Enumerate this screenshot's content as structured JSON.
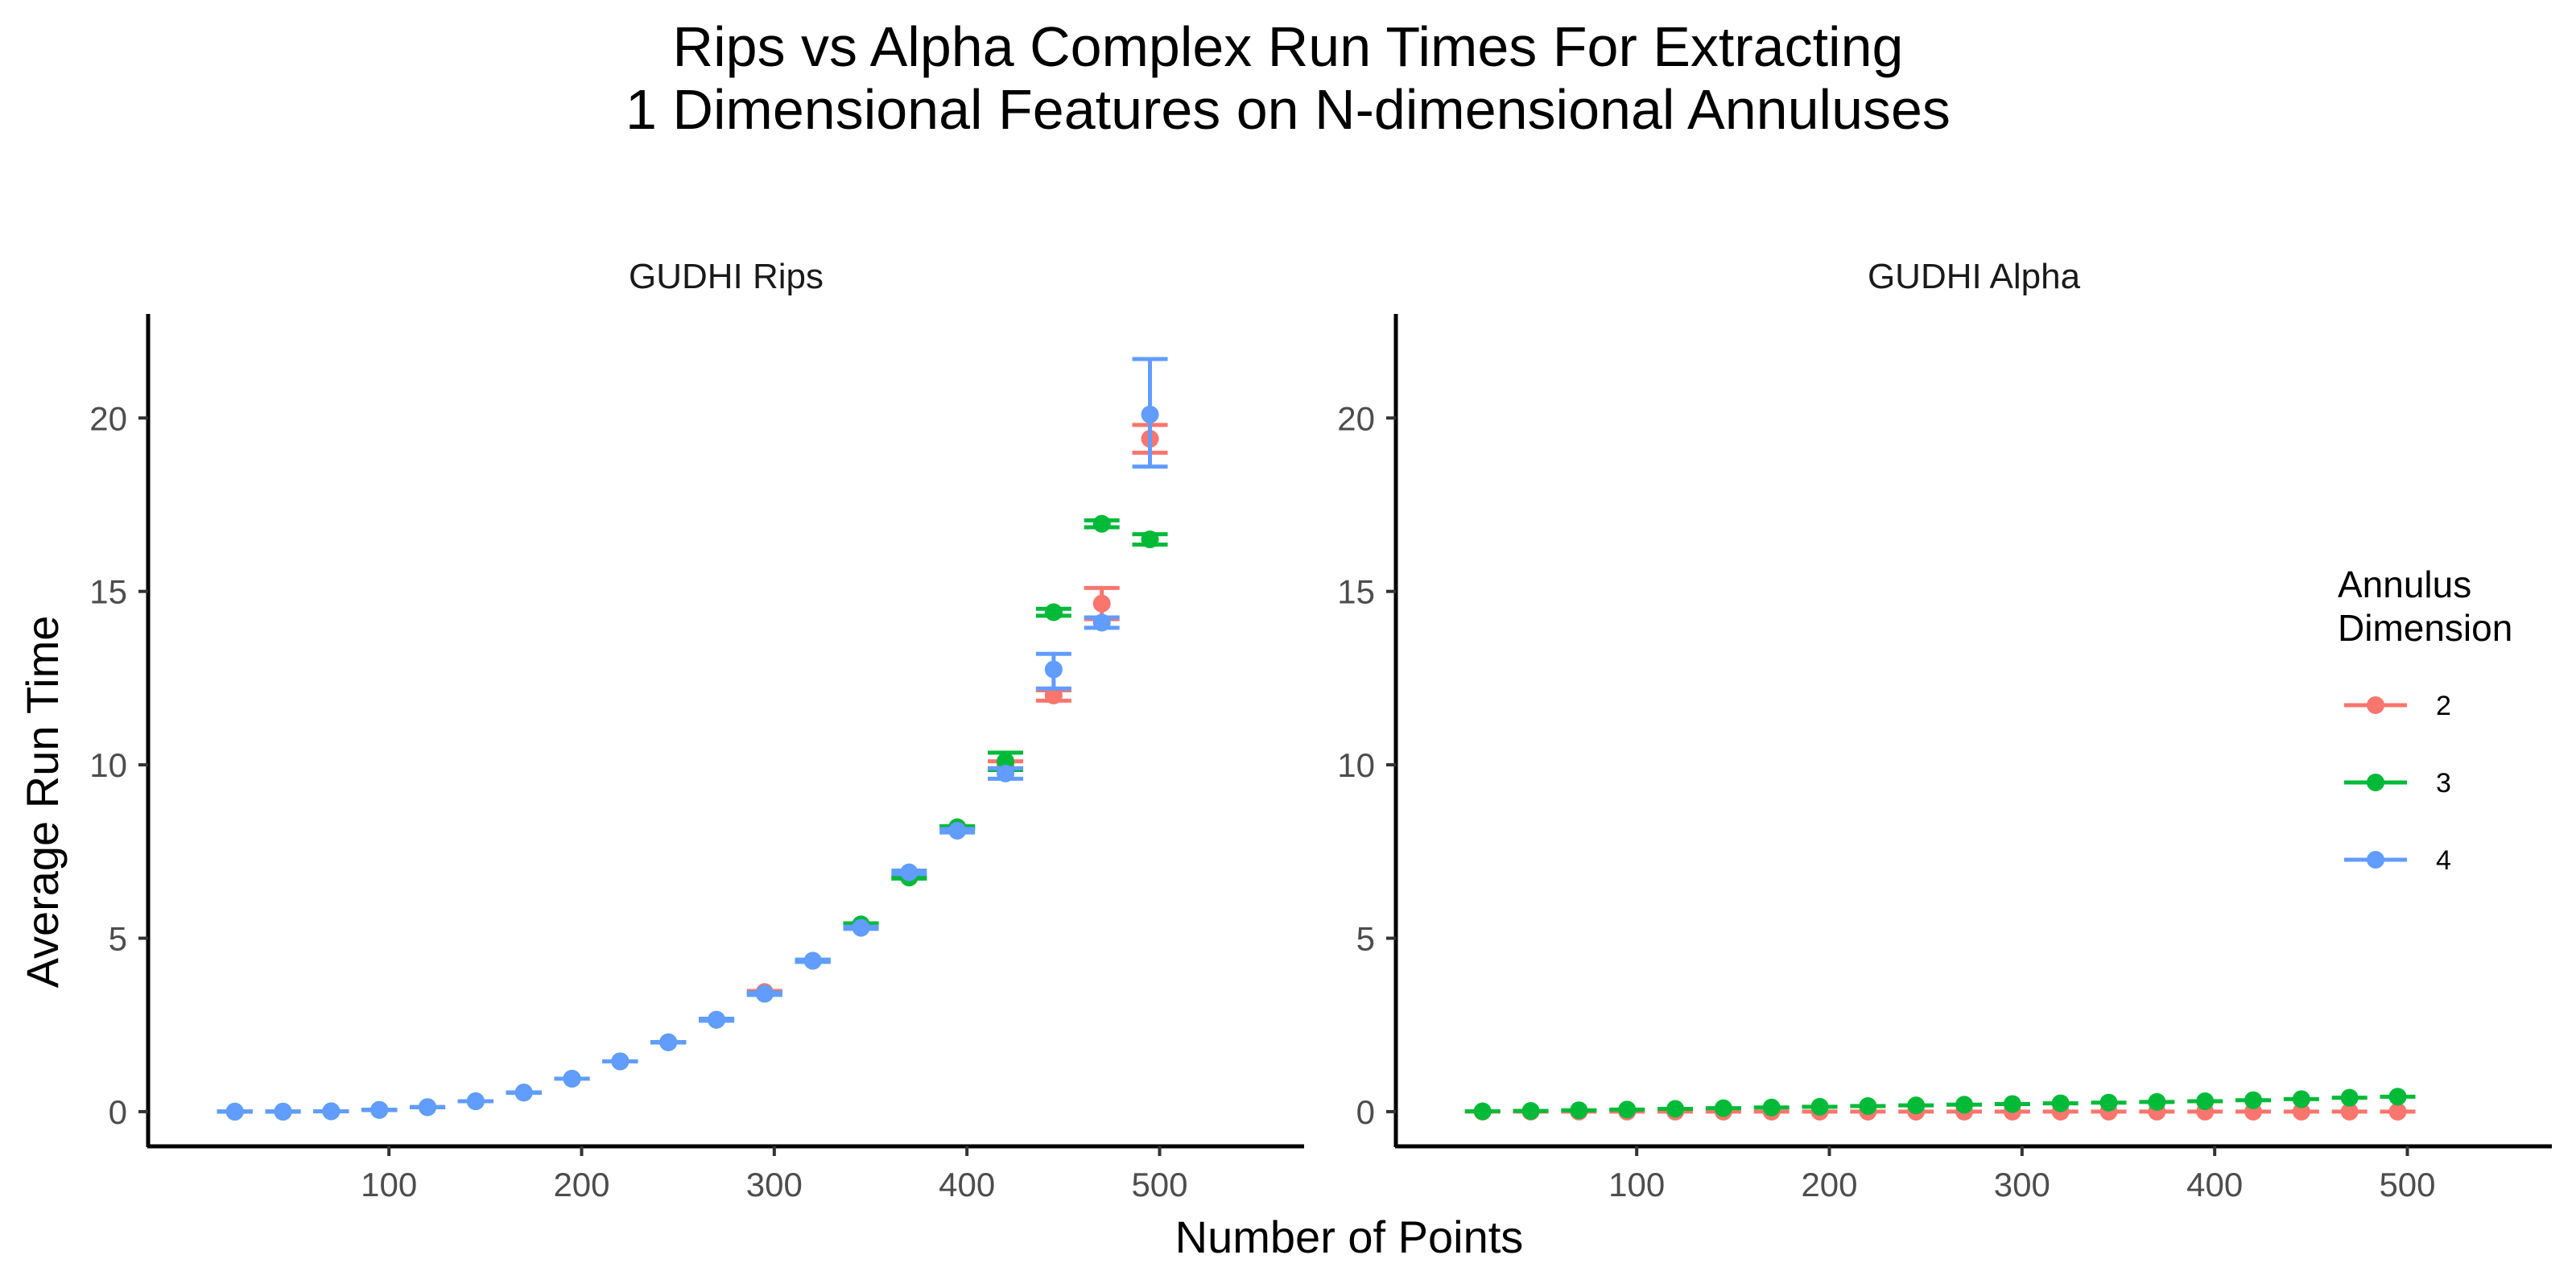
{
  "chart_data": {
    "type": "scatter",
    "title_lines": [
      "Rips vs Alpha Complex Run Times For Extracting",
      "1 Dimensional Features on N-dimensional Annuluses"
    ],
    "xlabel": "Number of Points",
    "ylabel": "Average Run Time",
    "xlim": [
      -25,
      575
    ],
    "ylim": [
      -1,
      23
    ],
    "x_ticks": [
      "100",
      "200",
      "300",
      "400",
      "500"
    ],
    "y_ticks": [
      "0",
      "5",
      "10",
      "15",
      "20"
    ],
    "x_tick_values": [
      100,
      200,
      300,
      400,
      500
    ],
    "y_tick_values": [
      0,
      5,
      10,
      15,
      20
    ],
    "grid": false,
    "legend": {
      "title_lines": [
        "Annulus",
        "Dimension"
      ],
      "placement": "right",
      "entries": [
        {
          "label": "2",
          "color": "#F8766D"
        },
        {
          "label": "3",
          "color": "#00BA38"
        },
        {
          "label": "4",
          "color": "#619CFF"
        }
      ]
    },
    "x": [
      20,
      45,
      70,
      95,
      120,
      145,
      170,
      195,
      220,
      245,
      270,
      295,
      320,
      345,
      370,
      395,
      420,
      445,
      470,
      495
    ],
    "panels": [
      {
        "name": "GUDHI Rips",
        "series": [
          {
            "name": "2",
            "color": "#F8766D",
            "values": [
              0.0,
              0.0,
              0.01,
              0.05,
              0.13,
              0.3,
              0.55,
              0.95,
              1.45,
              2.0,
              2.65,
              3.45,
              4.35,
              5.35,
              6.75,
              8.2,
              10.0,
              12.0,
              14.65,
              19.4
            ],
            "err_lo": [
              0.0,
              0.0,
              0.01,
              0.05,
              0.13,
              0.3,
              0.55,
              0.95,
              1.45,
              2.0,
              2.65,
              3.42,
              4.33,
              5.33,
              6.73,
              8.18,
              9.9,
              11.85,
              14.2,
              19.0
            ],
            "err_hi": [
              0.0,
              0.0,
              0.01,
              0.05,
              0.13,
              0.3,
              0.55,
              0.95,
              1.45,
              2.0,
              2.65,
              3.48,
              4.37,
              5.37,
              6.77,
              8.22,
              10.1,
              12.15,
              15.1,
              19.8
            ]
          },
          {
            "name": "3",
            "color": "#00BA38",
            "values": [
              0.0,
              0.0,
              0.01,
              0.05,
              0.13,
              0.3,
              0.55,
              0.95,
              1.45,
              2.0,
              2.65,
              3.4,
              4.35,
              5.4,
              6.75,
              8.2,
              10.1,
              14.4,
              16.95,
              16.5
            ],
            "err_lo": [
              0.0,
              0.0,
              0.01,
              0.05,
              0.13,
              0.3,
              0.55,
              0.95,
              1.45,
              2.0,
              2.62,
              3.37,
              4.32,
              5.37,
              6.72,
              8.17,
              9.85,
              14.3,
              16.85,
              16.35
            ],
            "err_hi": [
              0.0,
              0.0,
              0.01,
              0.05,
              0.13,
              0.3,
              0.55,
              0.95,
              1.45,
              2.0,
              2.68,
              3.43,
              4.38,
              5.43,
              6.78,
              8.23,
              10.35,
              14.5,
              17.05,
              16.65
            ]
          },
          {
            "name": "4",
            "color": "#619CFF",
            "values": [
              0.0,
              0.0,
              0.01,
              0.05,
              0.13,
              0.3,
              0.55,
              0.95,
              1.45,
              2.0,
              2.65,
              3.4,
              4.35,
              5.3,
              6.9,
              8.1,
              9.75,
              12.75,
              14.1,
              20.1
            ],
            "err_lo": [
              0.0,
              0.0,
              0.01,
              0.05,
              0.13,
              0.3,
              0.55,
              0.95,
              1.45,
              2.0,
              2.62,
              3.37,
              4.32,
              5.27,
              6.85,
              8.05,
              9.6,
              12.2,
              13.95,
              18.6
            ],
            "err_hi": [
              0.0,
              0.0,
              0.01,
              0.05,
              0.13,
              0.3,
              0.55,
              0.95,
              1.45,
              2.0,
              2.68,
              3.43,
              4.38,
              5.33,
              6.95,
              8.15,
              9.9,
              13.2,
              14.25,
              21.7
            ]
          }
        ]
      },
      {
        "name": "GUDHI Alpha",
        "series": [
          {
            "name": "2",
            "color": "#F8766D",
            "values": [
              0.0,
              0.0,
              0.0,
              0.0,
              0.0,
              0.0,
              0.0,
              0.0,
              0.0,
              0.0,
              0.0,
              0.0,
              0.0,
              0.0,
              0.0,
              0.0,
              0.0,
              0.0,
              0.0,
              0.0
            ]
          },
          {
            "name": "3",
            "color": "#00BA38",
            "values": [
              0.01,
              0.02,
              0.04,
              0.06,
              0.08,
              0.1,
              0.12,
              0.14,
              0.16,
              0.18,
              0.2,
              0.22,
              0.24,
              0.26,
              0.28,
              0.3,
              0.33,
              0.36,
              0.4,
              0.43
            ]
          },
          {
            "name": "4",
            "color": "#619CFF",
            "values": []
          }
        ]
      }
    ]
  }
}
